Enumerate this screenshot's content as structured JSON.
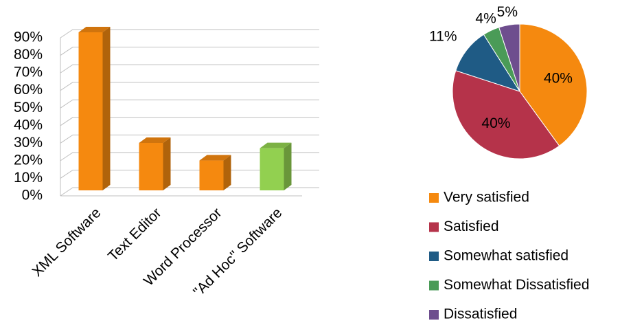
{
  "chart_data": [
    {
      "type": "bar3d",
      "categories": [
        "XML Software",
        "Text Editor",
        "Word Processor",
        "\"Ad Hoc\" Software"
      ],
      "values": [
        90,
        27,
        17,
        24
      ],
      "colors": [
        "#f5890f",
        "#f5890f",
        "#f5890f",
        "#92d050"
      ],
      "ylim": [
        0,
        90
      ],
      "yticks": [
        {
          "value": 0,
          "label": "0%"
        },
        {
          "value": 10,
          "label": "10%"
        },
        {
          "value": 20,
          "label": "20%"
        },
        {
          "value": 30,
          "label": "30%"
        },
        {
          "value": 40,
          "label": "40%"
        },
        {
          "value": 50,
          "label": "50%"
        },
        {
          "value": 60,
          "label": "60%"
        },
        {
          "value": 70,
          "label": "70%"
        },
        {
          "value": 80,
          "label": "80%"
        },
        {
          "value": 90,
          "label": "90%"
        }
      ],
      "grid": true
    },
    {
      "type": "pie",
      "categories": [
        "Very satisfied",
        "Satisfied",
        "Somewhat satisfied",
        "Somewhat Dissatisfied",
        "Dissatisfied"
      ],
      "values": [
        40,
        40,
        11,
        4,
        5
      ],
      "value_labels": [
        "40%",
        "40%",
        "11%",
        "4%",
        "5%"
      ],
      "colors": [
        "#f5890f",
        "#b5334a",
        "#1f5b85",
        "#4a9b57",
        "#6e4e8e"
      ],
      "legend": "bottom"
    }
  ]
}
